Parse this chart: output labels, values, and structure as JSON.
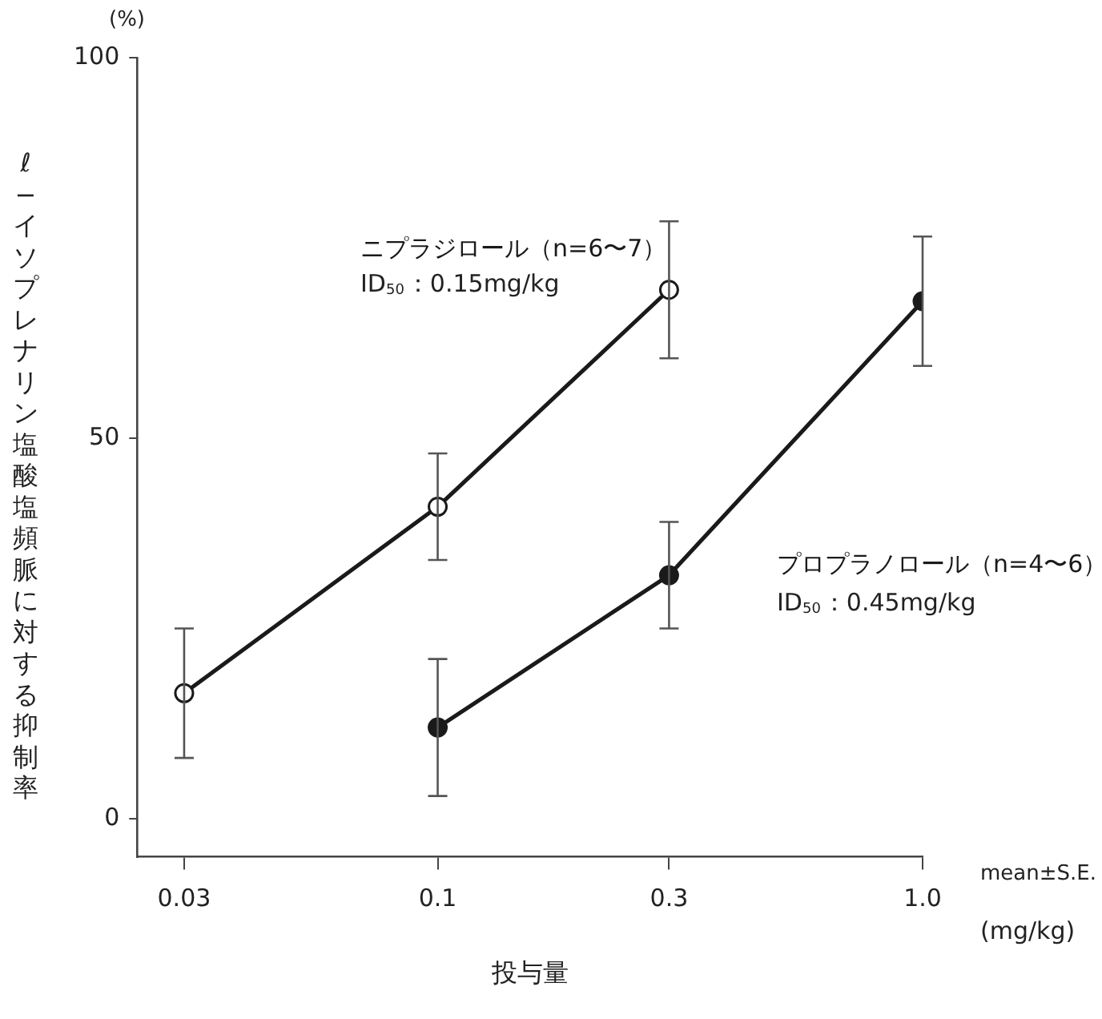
{
  "chart_data": {
    "type": "line",
    "xlabel": "投与量",
    "ylabel": "ℓ−イソプレナリン塩酸塩頻脈に対する抑制率",
    "log": "x",
    "xlim": [
      0.024,
      1.0
    ],
    "xticks": [
      0.03,
      0.1,
      0.3,
      {
        "value": 1,
        "label": "1.0"
      }
    ],
    "ylim": [
      -5,
      100
    ],
    "yticks": [
      0,
      50,
      100
    ],
    "grid": false,
    "legend": false,
    "marker": "circle",
    "line_style": "solid",
    "series": [
      {
        "name": "ニプラジロール（n=6〜7）",
        "color": "#1a1a1a",
        "x": [
          0.03,
          0.1,
          0.3
        ],
        "values": [
          16.5,
          41,
          69.5
        ],
        "errors": [
          8.5,
          7,
          9
        ]
      },
      {
        "name": "プロプラノロール（n=4〜6）",
        "color": "#1a1a1a",
        "x": [
          0.1,
          0.3,
          1.0
        ],
        "values": [
          12,
          32,
          68
        ],
        "errors": [
          9,
          7,
          8.5
        ]
      }
    ],
    "annotations": [
      "ID$_{50}$：0.15mg/kg",
      "ID$_{50}$：0.45mg/kg",
      "mean±S.E.",
      "(mg/kg)",
      "(%)"
    ]
  }
}
